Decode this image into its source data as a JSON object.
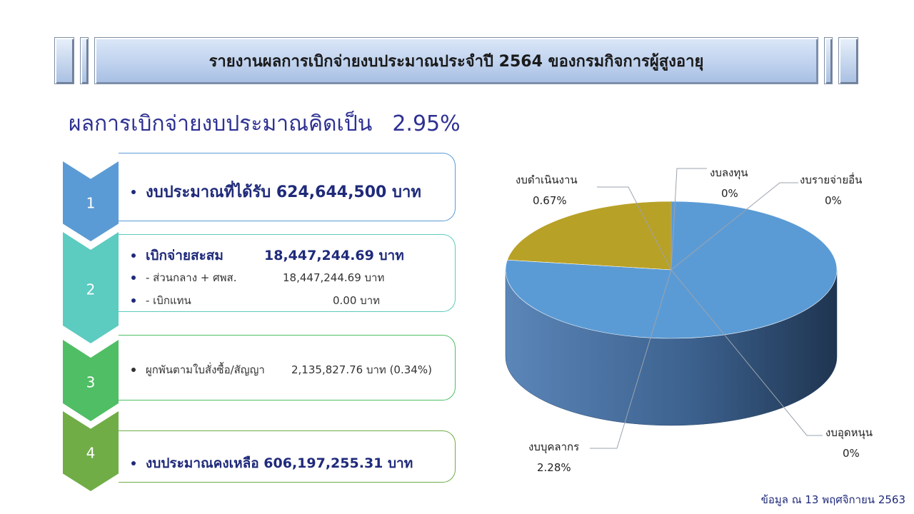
{
  "header": {
    "title": "รายงานผลการเบิกจ่ายงบประมาณประจำปี  2564  ของกรมกิจการผู้สูงอายุ"
  },
  "summary": {
    "label": "ผลการเบิกจ่ายงบประมาณคิดเป็น",
    "percent": "2.95%"
  },
  "steps": [
    {
      "number": "1",
      "lines": [
        {
          "text": "งบประมาณที่ได้รับ  624,644,500  บาท"
        }
      ]
    },
    {
      "number": "2",
      "lines": [
        {
          "label": "เบิกจ่ายสะสม",
          "value": "18,447,244.69  บาท"
        },
        {
          "label": "- ส่วนกลาง + ศพส.",
          "value": "18,447,244.69 บาท"
        },
        {
          "label": "- เบิกแทน",
          "value": "0.00  บาท"
        }
      ]
    },
    {
      "number": "3",
      "lines": [
        {
          "label": "ผูกพันตามใบสั่งซื้อ/สัญญา",
          "value": "2,135,827.76 บาท (0.34%)"
        }
      ]
    },
    {
      "number": "4",
      "lines": [
        {
          "text": "งบประมาณคงเหลือ 606,197,255.31  บาท"
        }
      ]
    }
  ],
  "chart_data": {
    "type": "pie",
    "slices": [
      {
        "label": "งบบุคลากร",
        "display": "2.28%",
        "value": 2.28,
        "color": "#5b9bd5"
      },
      {
        "label": "งบดำเนินงาน",
        "display": "0.67%",
        "value": 0.67,
        "color": "#b8a127"
      },
      {
        "label": "งบลงทุน",
        "display": "0%",
        "value": 0.0,
        "color": "#a5a5a5"
      },
      {
        "label": "งบรายจ่ายอื่น",
        "display": "0%",
        "value": 0.0,
        "color": "#ffc000"
      },
      {
        "label": "งบอุดหนุน",
        "display": "0%",
        "value": 0.0,
        "color": "#4472c4"
      }
    ]
  },
  "footer": {
    "note": "ข้อมูล ณ 13 พฤศจิกายน  2563"
  },
  "colors": {
    "step1": "#5b9bd5",
    "step2": "#5ccbc0",
    "step3": "#4fbe64",
    "step4": "#70ad47",
    "accent": "#2e3192"
  }
}
